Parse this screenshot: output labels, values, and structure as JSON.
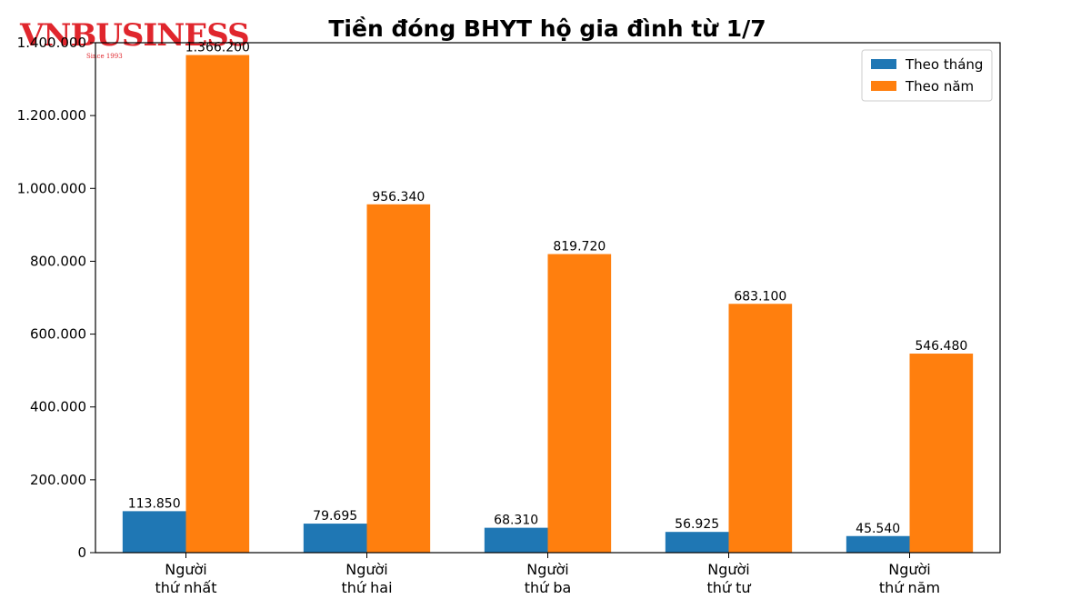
{
  "logo": {
    "text": "VNBUSINESS",
    "subtext": "Since 1993",
    "color": "#e0262d"
  },
  "chart_data": {
    "type": "bar",
    "title": "Tiền đóng BHYT hộ gia đình từ 1/7",
    "xlabel": "",
    "ylabel": "",
    "ylim": [
      0,
      1400000
    ],
    "yticks": [
      {
        "value": 0,
        "label": "0"
      },
      {
        "value": 200000,
        "label": "200.000"
      },
      {
        "value": 400000,
        "label": "400.000"
      },
      {
        "value": 600000,
        "label": "600.000"
      },
      {
        "value": 800000,
        "label": "800.000"
      },
      {
        "value": 1000000,
        "label": "1.000.000"
      },
      {
        "value": 1200000,
        "label": "1.200.000"
      },
      {
        "value": 1400000,
        "label": "1.400.000"
      }
    ],
    "categories": [
      [
        "Người",
        "thứ nhất"
      ],
      [
        "Người",
        "thứ hai"
      ],
      [
        "Người",
        "thứ ba"
      ],
      [
        "Người",
        "thứ tư"
      ],
      [
        "Người",
        "thứ năm"
      ]
    ],
    "series": [
      {
        "name": "Theo tháng",
        "color": "#1f77b4",
        "values": [
          113850,
          79695,
          68310,
          56925,
          45540
        ],
        "labels": [
          "113.850",
          "79.695",
          "68.310",
          "56.925",
          "45.540"
        ]
      },
      {
        "name": "Theo năm",
        "color": "#ff7f0e",
        "values": [
          1366200,
          956340,
          819720,
          683100,
          546480
        ],
        "labels": [
          "1.366.200",
          "956.340",
          "819.720",
          "683.100",
          "546.480"
        ]
      }
    ],
    "grid": false,
    "legend_position": "top-right"
  }
}
